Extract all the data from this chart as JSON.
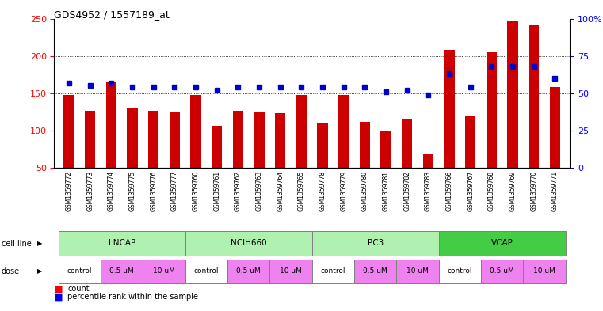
{
  "title": "GDS4952 / 1557189_at",
  "samples": [
    "GSM1359772",
    "GSM1359773",
    "GSM1359774",
    "GSM1359775",
    "GSM1359776",
    "GSM1359777",
    "GSM1359760",
    "GSM1359761",
    "GSM1359762",
    "GSM1359763",
    "GSM1359764",
    "GSM1359765",
    "GSM1359778",
    "GSM1359779",
    "GSM1359780",
    "GSM1359781",
    "GSM1359782",
    "GSM1359783",
    "GSM1359766",
    "GSM1359767",
    "GSM1359768",
    "GSM1359769",
    "GSM1359770",
    "GSM1359771"
  ],
  "counts": [
    148,
    127,
    165,
    131,
    127,
    124,
    148,
    106,
    127,
    124,
    123,
    148,
    110,
    148,
    112,
    100,
    115,
    68,
    208,
    120,
    205,
    247,
    242,
    158
  ],
  "percentile_ranks": [
    57,
    55,
    57,
    54,
    54,
    54,
    54,
    52,
    54,
    54,
    54,
    54,
    54,
    54,
    54,
    51,
    52,
    49,
    63,
    54,
    68,
    68,
    68,
    60
  ],
  "cell_line_data": [
    {
      "name": "LNCAP",
      "start": 0,
      "end": 6,
      "color": "#b0f0b0"
    },
    {
      "name": "NCIH660",
      "start": 6,
      "end": 12,
      "color": "#b0f0b0"
    },
    {
      "name": "PC3",
      "start": 12,
      "end": 18,
      "color": "#b0f0b0"
    },
    {
      "name": "VCAP",
      "start": 18,
      "end": 24,
      "color": "#44cc44"
    }
  ],
  "dose_data": [
    {
      "name": "control",
      "start": 0,
      "end": 2,
      "color": "#ffffff"
    },
    {
      "name": "0.5 uM",
      "start": 2,
      "end": 4,
      "color": "#ee82ee"
    },
    {
      "name": "10 uM",
      "start": 4,
      "end": 6,
      "color": "#ee82ee"
    },
    {
      "name": "control",
      "start": 6,
      "end": 8,
      "color": "#ffffff"
    },
    {
      "name": "0.5 uM",
      "start": 8,
      "end": 10,
      "color": "#ee82ee"
    },
    {
      "name": "10 uM",
      "start": 10,
      "end": 12,
      "color": "#ee82ee"
    },
    {
      "name": "control",
      "start": 12,
      "end": 14,
      "color": "#ffffff"
    },
    {
      "name": "0.5 uM",
      "start": 14,
      "end": 16,
      "color": "#ee82ee"
    },
    {
      "name": "10 uM",
      "start": 16,
      "end": 18,
      "color": "#ee82ee"
    },
    {
      "name": "control",
      "start": 18,
      "end": 20,
      "color": "#ffffff"
    },
    {
      "name": "0.5 uM",
      "start": 20,
      "end": 22,
      "color": "#ee82ee"
    },
    {
      "name": "10 uM",
      "start": 22,
      "end": 24,
      "color": "#ee82ee"
    }
  ],
  "bar_color": "#cc0000",
  "dot_color": "#0000cc",
  "ylim_left": [
    50,
    250
  ],
  "ylim_right": [
    0,
    100
  ],
  "yticks_left": [
    50,
    100,
    150,
    200,
    250
  ],
  "yticks_right": [
    0,
    25,
    50,
    75,
    100
  ],
  "ytick_labels_right": [
    "0",
    "25",
    "50",
    "75",
    "100%"
  ],
  "grid_values": [
    100,
    150,
    200
  ],
  "bar_width": 0.5,
  "label_bg": "#d3d3d3",
  "plot_bg": "#ffffff"
}
